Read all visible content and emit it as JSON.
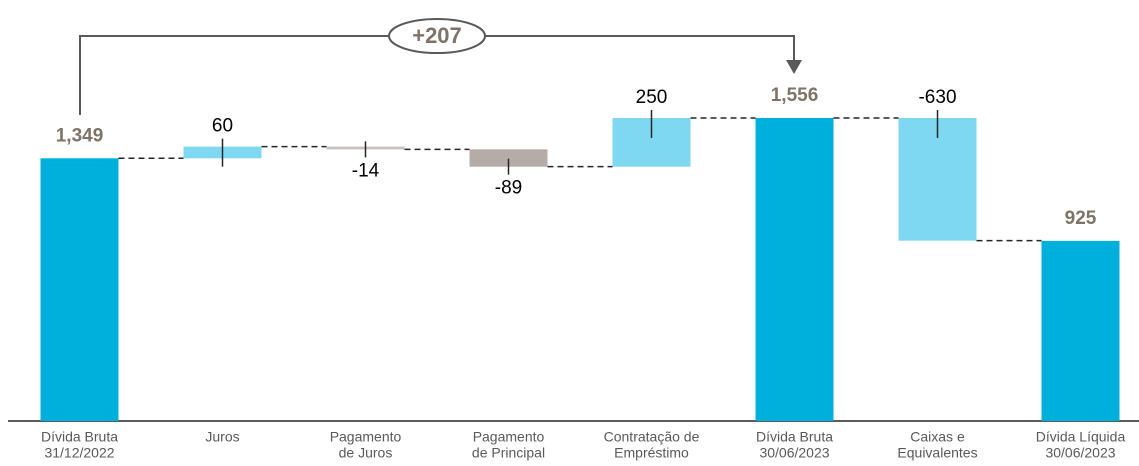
{
  "chart_data": {
    "type": "waterfall",
    "categories": [
      [
        "Dívida Bruta",
        "31/12/2022"
      ],
      [
        "Juros"
      ],
      [
        "Pagamento",
        "de Juros"
      ],
      [
        "Pagamento",
        "de Principal"
      ],
      [
        "Contratação de",
        "Empréstimo"
      ],
      [
        "Dívida Bruta",
        "30/06/2023"
      ],
      [
        "Caixas e",
        "Equivalentes"
      ],
      [
        "Dívida Líquida",
        "30/06/2023"
      ]
    ],
    "values": [
      1349,
      60,
      -14,
      -89,
      250,
      1556,
      -630,
      925
    ],
    "value_labels": [
      "1,349",
      "60",
      "-14",
      "-89",
      "250",
      "1,556",
      "-630",
      "925"
    ],
    "measures": [
      "total",
      "relative",
      "relative",
      "relative",
      "relative",
      "total",
      "relative",
      "total"
    ],
    "colors": [
      "#00b0dc",
      "#7fd8f2",
      "#c8c0bc",
      "#b5aca8",
      "#7fd8f2",
      "#00b0dc",
      "#7fd8f2",
      "#00b0dc"
    ],
    "label_positions": [
      "above",
      "above",
      "below",
      "below",
      "above",
      "above",
      "above",
      "above"
    ],
    "annotation": "+207",
    "ylim": [
      0,
      1556
    ]
  }
}
